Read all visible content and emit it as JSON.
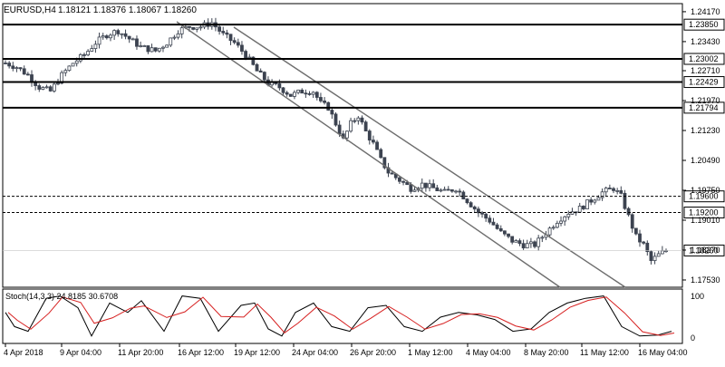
{
  "header": {
    "symbol_timeframe": "EURUSD,H4",
    "ohlc": "1.18121 1.18376 1.18067 1.18260"
  },
  "colors": {
    "background": "#ffffff",
    "candle_body": "#3c4350",
    "axis": "#000000",
    "channel": "#6e6e6e",
    "stoch_main": "#000000",
    "stoch_signal": "#d61f1f",
    "price_label_bg": "#ffffff",
    "current_price_bg": "#ffffff"
  },
  "price_axis": {
    "ticks": [
      "1.24170",
      "1.23430",
      "1.22710",
      "1.21970",
      "1.21230",
      "1.20490",
      "1.19750",
      "1.19010",
      "1.18270",
      "1.17530"
    ]
  },
  "levels": [
    {
      "label": "1.23850",
      "value": 1.2385,
      "style": "solid"
    },
    {
      "label": "1.23002",
      "value": 1.23002,
      "style": "solid"
    },
    {
      "label": "1.22429",
      "value": 1.22429,
      "style": "solid"
    },
    {
      "label": "1.21794",
      "value": 1.21794,
      "style": "solid"
    },
    {
      "label": "1.19600",
      "value": 1.196,
      "style": "dashed"
    },
    {
      "label": "1.19200",
      "value": 1.192,
      "style": "dashed"
    }
  ],
  "current_price": {
    "label": "1.18260",
    "value": 1.1826
  },
  "stochastic": {
    "label": "Stoch(14,3,3) 24.8185 30.6708",
    "scale_top": "100",
    "scale_bottom": "0"
  },
  "time_axis": {
    "labels": [
      "4 Apr 2018",
      "9 Apr 04:00",
      "11 Apr 20:00",
      "16 Apr 12:00",
      "19 Apr 12:00",
      "24 Apr 04:00",
      "26 Apr 20:00",
      "1 May 12:00",
      "4 May 04:00",
      "8 May 20:00",
      "11 May 12:00",
      "16 May 04:00"
    ]
  },
  "chart_data": {
    "type": "candlestick",
    "title": "EURUSD,H4",
    "xlabel": "",
    "ylabel": "",
    "ylim": [
      1.1735,
      1.2437
    ],
    "close_path": [
      [
        0,
        1.229
      ],
      [
        3,
        1.228
      ],
      [
        6,
        1.226
      ],
      [
        9,
        1.223
      ],
      [
        12,
        1.222
      ],
      [
        15,
        1.226
      ],
      [
        18,
        1.229
      ],
      [
        21,
        1.231
      ],
      [
        24,
        1.234
      ],
      [
        27,
        1.236
      ],
      [
        30,
        1.237
      ],
      [
        33,
        1.235
      ],
      [
        36,
        1.233
      ],
      [
        40,
        1.232
      ],
      [
        43,
        1.234
      ],
      [
        46,
        1.237
      ],
      [
        49,
        1.238
      ],
      [
        52,
        1.238
      ],
      [
        55,
        1.239
      ],
      [
        58,
        1.236
      ],
      [
        61,
        1.234
      ],
      [
        64,
        1.231
      ],
      [
        67,
        1.227
      ],
      [
        70,
        1.224
      ],
      [
        73,
        1.223
      ],
      [
        76,
        1.221
      ],
      [
        79,
        1.222
      ],
      [
        82,
        1.222
      ],
      [
        84,
        1.219
      ],
      [
        86,
        1.218
      ],
      [
        88,
        1.214
      ],
      [
        90,
        1.21
      ],
      [
        92,
        1.214
      ],
      [
        94,
        1.216
      ],
      [
        96,
        1.212
      ],
      [
        98,
        1.209
      ],
      [
        100,
        1.205
      ],
      [
        102,
        1.202
      ],
      [
        105,
        1.2
      ],
      [
        108,
        1.198
      ],
      [
        111,
        1.199
      ],
      [
        114,
        1.198
      ],
      [
        117,
        1.197
      ],
      [
        120,
        1.198
      ],
      [
        123,
        1.195
      ],
      [
        126,
        1.192
      ],
      [
        129,
        1.19
      ],
      [
        132,
        1.187
      ],
      [
        135,
        1.185
      ],
      [
        138,
        1.184
      ],
      [
        141,
        1.184
      ],
      [
        144,
        1.187
      ],
      [
        147,
        1.19
      ],
      [
        150,
        1.192
      ],
      [
        153,
        1.193
      ],
      [
        156,
        1.195
      ],
      [
        159,
        1.197
      ],
      [
        162,
        1.198
      ],
      [
        164,
        1.196
      ],
      [
        166,
        1.191
      ],
      [
        168,
        1.186
      ],
      [
        170,
        1.184
      ],
      [
        172,
        1.18
      ],
      [
        174,
        1.1815
      ],
      [
        176,
        1.1826
      ]
    ]
  }
}
